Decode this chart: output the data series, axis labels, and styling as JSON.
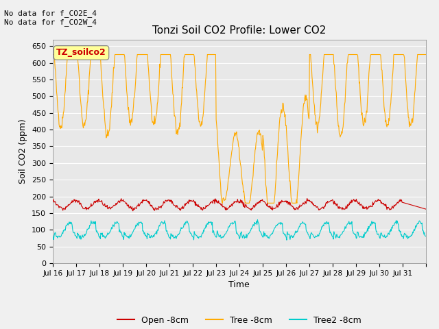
{
  "title": "Tonzi Soil CO2 Profile: Lower CO2",
  "ylabel": "Soil CO2 (ppm)",
  "xlabel": "Time",
  "text_upper_left": "No data for f_CO2E_4\nNo data for f_CO2W_4",
  "legend_label_box": "TZ_soilco2",
  "ylim": [
    0,
    670
  ],
  "yticks": [
    0,
    50,
    100,
    150,
    200,
    250,
    300,
    350,
    400,
    450,
    500,
    550,
    600,
    650
  ],
  "xtick_labels": [
    "Jul 16",
    "Jul 17",
    "Jul 18",
    "Jul 19",
    "Jul 20",
    "Jul 21",
    "Jul 22",
    "Jul 23",
    "Jul 24",
    "Jul 25",
    "Jul 26",
    "Jul 27",
    "Jul 28",
    "Jul 29",
    "Jul 30",
    "Jul 31",
    ""
  ],
  "color_open": "#cc0000",
  "color_tree": "#ffaa00",
  "color_tree2": "#00cccc",
  "color_bg": "#e8e8e8",
  "color_box_bg": "#ffff99",
  "color_box_text": "#cc0000",
  "legend_labels": [
    "Open -8cm",
    "Tree -8cm",
    "Tree2 -8cm"
  ],
  "n_days": 16,
  "pts_per_day": 48
}
